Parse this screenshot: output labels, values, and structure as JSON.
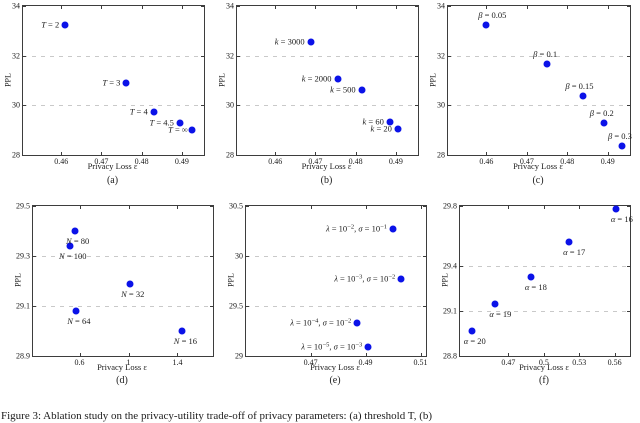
{
  "figure": {
    "caption": "Figure 3: Ablation study on the privacy-utility trade-off of privacy parameters: (a) threshold T, (b)"
  },
  "colors": {
    "point": "#0b12e8",
    "grid": "#c9c9c9",
    "axis": "#3d3d3d"
  },
  "chart_data": [
    {
      "id": "a",
      "type": "scatter",
      "caption": "(a)",
      "xlabel": "Privacy Loss ε",
      "ylabel": "PPL",
      "xlim": [
        0.4505,
        0.4955
      ],
      "ylim": [
        28,
        34
      ],
      "grid": "dashed-horizontal",
      "legend": "none",
      "xticks": [
        {
          "v": 0.46,
          "t": "0.46"
        },
        {
          "v": 0.47,
          "t": "0.47"
        },
        {
          "v": 0.48,
          "t": "0.48"
        },
        {
          "v": 0.49,
          "t": "0.49"
        }
      ],
      "yticks": [
        {
          "v": 28,
          "t": "28"
        },
        {
          "v": 30,
          "t": "30"
        },
        {
          "v": 32,
          "t": "32"
        },
        {
          "v": 34,
          "t": "34"
        }
      ],
      "grid_y": [
        30,
        32
      ],
      "points": [
        {
          "x": 0.461,
          "y": 33.25,
          "pos": "left",
          "segs": [
            [
              "T",
              1
            ],
            [
              " = 2",
              0
            ]
          ]
        },
        {
          "x": 0.4762,
          "y": 30.88,
          "pos": "left",
          "segs": [
            [
              "T",
              1
            ],
            [
              " = 3",
              0
            ]
          ]
        },
        {
          "x": 0.483,
          "y": 29.74,
          "pos": "left",
          "segs": [
            [
              "T",
              1
            ],
            [
              " = 4",
              0
            ]
          ]
        },
        {
          "x": 0.4895,
          "y": 29.3,
          "pos": "left",
          "segs": [
            [
              "T",
              1
            ],
            [
              " = 4.5",
              0
            ]
          ]
        },
        {
          "x": 0.4925,
          "y": 29.01,
          "pos": "left",
          "dx": 4,
          "segs": [
            [
              "T",
              1
            ],
            [
              " = ∞",
              0
            ]
          ]
        }
      ]
    },
    {
      "id": "b",
      "type": "scatter",
      "caption": "(b)",
      "xlabel": "Privacy Loss ε",
      "ylabel": "PPL",
      "xlim": [
        0.4505,
        0.4955
      ],
      "ylim": [
        28,
        34
      ],
      "grid": "dashed-horizontal",
      "legend": "none",
      "xticks": [
        {
          "v": 0.46,
          "t": "0.46"
        },
        {
          "v": 0.47,
          "t": "0.47"
        },
        {
          "v": 0.48,
          "t": "0.48"
        },
        {
          "v": 0.49,
          "t": "0.49"
        }
      ],
      "yticks": [
        {
          "v": 28,
          "t": "28"
        },
        {
          "v": 30,
          "t": "30"
        },
        {
          "v": 32,
          "t": "32"
        },
        {
          "v": 34,
          "t": "34"
        }
      ],
      "grid_y": [
        30,
        32
      ],
      "points": [
        {
          "x": 0.4688,
          "y": 32.55,
          "pos": "left",
          "segs": [
            [
              "k",
              1
            ],
            [
              " = 3000",
              0
            ]
          ]
        },
        {
          "x": 0.4755,
          "y": 31.08,
          "pos": "left",
          "segs": [
            [
              "k",
              1
            ],
            [
              " = 2000",
              0
            ]
          ]
        },
        {
          "x": 0.4815,
          "y": 30.62,
          "pos": "left",
          "segs": [
            [
              "k",
              1
            ],
            [
              " = 500",
              0
            ]
          ]
        },
        {
          "x": 0.4885,
          "y": 29.34,
          "pos": "left",
          "segs": [
            [
              "k",
              1
            ],
            [
              " = 60",
              0
            ]
          ]
        },
        {
          "x": 0.4905,
          "y": 29.06,
          "pos": "left",
          "segs": [
            [
              "k",
              1
            ],
            [
              " = 20",
              0
            ]
          ]
        }
      ]
    },
    {
      "id": "c",
      "type": "scatter",
      "caption": "(c)",
      "xlabel": "Privacy Loss ε",
      "ylabel": "PPL",
      "xlim": [
        0.4505,
        0.4955
      ],
      "ylim": [
        28,
        34
      ],
      "grid": "dashed-horizontal",
      "legend": "none",
      "xticks": [
        {
          "v": 0.46,
          "t": "0.46"
        },
        {
          "v": 0.47,
          "t": "0.47"
        },
        {
          "v": 0.48,
          "t": "0.48"
        },
        {
          "v": 0.49,
          "t": "0.49"
        }
      ],
      "yticks": [
        {
          "v": 28,
          "t": "28"
        },
        {
          "v": 30,
          "t": "30"
        },
        {
          "v": 32,
          "t": "32"
        },
        {
          "v": 34,
          "t": "34"
        }
      ],
      "grid_y": [
        30,
        32
      ],
      "points": [
        {
          "x": 0.46,
          "y": 33.25,
          "pos": "above",
          "dx": 20,
          "segs": [
            [
              "β",
              1
            ],
            [
              " = 0.05",
              0
            ]
          ]
        },
        {
          "x": 0.475,
          "y": 31.66,
          "pos": "above",
          "dx": 10,
          "segs": [
            [
              "β",
              1
            ],
            [
              " = 0.1",
              0
            ]
          ]
        },
        {
          "x": 0.484,
          "y": 30.38,
          "pos": "above",
          "dx": 10,
          "segs": [
            [
              "β",
              1
            ],
            [
              " = 0.15",
              0
            ]
          ]
        },
        {
          "x": 0.489,
          "y": 29.3,
          "pos": "above",
          "dx": 10,
          "segs": [
            [
              "β",
              1
            ],
            [
              " = 0.2",
              0
            ]
          ]
        },
        {
          "x": 0.4935,
          "y": 28.38,
          "pos": "above",
          "dx": 10,
          "segs": [
            [
              "β",
              1
            ],
            [
              " = 0.3",
              0
            ]
          ]
        }
      ]
    },
    {
      "id": "d",
      "type": "scatter",
      "caption": "(d)",
      "xlabel": "Privacy Loss ε",
      "ylabel": "PPL",
      "xlim": [
        0.22,
        1.69
      ],
      "ylim": [
        28.9,
        29.5
      ],
      "grid": "dashed-horizontal",
      "legend": "none",
      "xticks": [
        {
          "v": 0.6,
          "t": "0.6"
        },
        {
          "v": 1,
          "t": "1"
        },
        {
          "v": 1.4,
          "t": "1.4"
        }
      ],
      "yticks": [
        {
          "v": 28.9,
          "t": "28.9"
        },
        {
          "v": 29.1,
          "t": "29.1"
        },
        {
          "v": 29.3,
          "t": "29.3"
        },
        {
          "v": 29.5,
          "t": "29.5"
        }
      ],
      "grid_y": [
        29.1,
        29.3
      ],
      "points": [
        {
          "x": 0.56,
          "y": 29.4,
          "pos": "below",
          "dx": 3,
          "segs": [
            [
              "N",
              1
            ],
            [
              " = 80",
              0
            ]
          ]
        },
        {
          "x": 0.52,
          "y": 29.34,
          "pos": "below",
          "dx": 3,
          "segs": [
            [
              "N",
              1
            ],
            [
              " = 100",
              0
            ]
          ]
        },
        {
          "x": 1.01,
          "y": 29.19,
          "pos": "below",
          "dx": 3,
          "segs": [
            [
              "N",
              1
            ],
            [
              " = 32",
              0
            ]
          ]
        },
        {
          "x": 0.57,
          "y": 29.08,
          "pos": "below",
          "dx": 3,
          "segs": [
            [
              "N",
              1
            ],
            [
              " = 64",
              0
            ]
          ]
        },
        {
          "x": 1.44,
          "y": 29.0,
          "pos": "below",
          "dx": 3,
          "segs": [
            [
              "N",
              1
            ],
            [
              " = 16",
              0
            ]
          ]
        }
      ]
    },
    {
      "id": "e",
      "type": "scatter",
      "caption": "(e)",
      "xlabel": "Privacy Loss ε",
      "ylabel": "PPL",
      "xlim": [
        0.4465,
        0.512
      ],
      "ylim": [
        29,
        30.5
      ],
      "grid": "dashed-horizontal",
      "legend": "none",
      "xticks": [
        {
          "v": 0.47,
          "t": "0.47"
        },
        {
          "v": 0.49,
          "t": "0.49"
        },
        {
          "v": 0.51,
          "t": "0.51"
        }
      ],
      "yticks": [
        {
          "v": 29,
          "t": "29"
        },
        {
          "v": 29.5,
          "t": "29.5"
        },
        {
          "v": 30,
          "t": "30"
        },
        {
          "v": 30.5,
          "t": "30.5"
        }
      ],
      "grid_y": [
        29.5,
        30
      ],
      "points": [
        {
          "x": 0.5,
          "y": 30.27,
          "pos": "left",
          "segs": [
            [
              "λ",
              1
            ],
            [
              " = 10",
              0
            ],
            [
              "−2",
              2
            ],
            [
              ", ",
              0
            ],
            [
              "σ",
              1
            ],
            [
              " = 10",
              0
            ],
            [
              "−1",
              2
            ]
          ]
        },
        {
          "x": 0.503,
          "y": 29.77,
          "pos": "left",
          "segs": [
            [
              "λ",
              1
            ],
            [
              " = 10",
              0
            ],
            [
              "−3",
              2
            ],
            [
              ", ",
              0
            ],
            [
              "σ",
              1
            ],
            [
              " = 10",
              0
            ],
            [
              "−2",
              2
            ]
          ]
        },
        {
          "x": 0.487,
          "y": 29.33,
          "pos": "left",
          "segs": [
            [
              "λ",
              1
            ],
            [
              " = 10",
              0
            ],
            [
              "−4",
              2
            ],
            [
              ", ",
              0
            ],
            [
              "σ",
              1
            ],
            [
              " = 10",
              0
            ],
            [
              "−2",
              2
            ]
          ]
        },
        {
          "x": 0.491,
          "y": 29.09,
          "pos": "left",
          "segs": [
            [
              "λ",
              1
            ],
            [
              " = 10",
              0
            ],
            [
              "−5",
              2
            ],
            [
              ", ",
              0
            ],
            [
              "σ",
              1
            ],
            [
              " = 10",
              0
            ],
            [
              "−3",
              2
            ]
          ]
        }
      ]
    },
    {
      "id": "f",
      "type": "scatter",
      "caption": "(f)",
      "xlabel": "Privacy Loss ε",
      "ylabel": "PPL",
      "xlim": [
        0.429,
        0.573
      ],
      "ylim": [
        28.8,
        29.8
      ],
      "grid": "dashed-horizontal",
      "legend": "none",
      "xticks": [
        {
          "v": 0.47,
          "t": "0.47"
        },
        {
          "v": 0.5,
          "t": "0.5"
        },
        {
          "v": 0.53,
          "t": "0.53"
        },
        {
          "v": 0.56,
          "t": "0.56"
        }
      ],
      "yticks": [
        {
          "v": 28.8,
          "t": "28.8"
        },
        {
          "v": 29.1,
          "t": "29.1"
        },
        {
          "v": 29.4,
          "t": "29.4"
        },
        {
          "v": 29.8,
          "t": "29.8"
        }
      ],
      "grid_y": [
        29.1,
        29.4
      ],
      "points": [
        {
          "x": 0.561,
          "y": 29.78,
          "pos": "below",
          "dx": 6,
          "segs": [
            [
              "α",
              1
            ],
            [
              " = 16",
              0
            ]
          ]
        },
        {
          "x": 0.5215,
          "y": 29.56,
          "pos": "below",
          "dx": 5,
          "segs": [
            [
              "α",
              1
            ],
            [
              " = 17",
              0
            ]
          ]
        },
        {
          "x": 0.489,
          "y": 29.33,
          "pos": "below",
          "dx": 5,
          "segs": [
            [
              "α",
              1
            ],
            [
              " = 18",
              0
            ]
          ]
        },
        {
          "x": 0.459,
          "y": 29.15,
          "pos": "below",
          "dx": 5,
          "segs": [
            [
              "α",
              1
            ],
            [
              " = 19",
              0
            ]
          ]
        },
        {
          "x": 0.439,
          "y": 28.97,
          "pos": "below",
          "dx": 3,
          "segs": [
            [
              "α",
              1
            ],
            [
              " = 20",
              0
            ]
          ]
        }
      ]
    }
  ]
}
